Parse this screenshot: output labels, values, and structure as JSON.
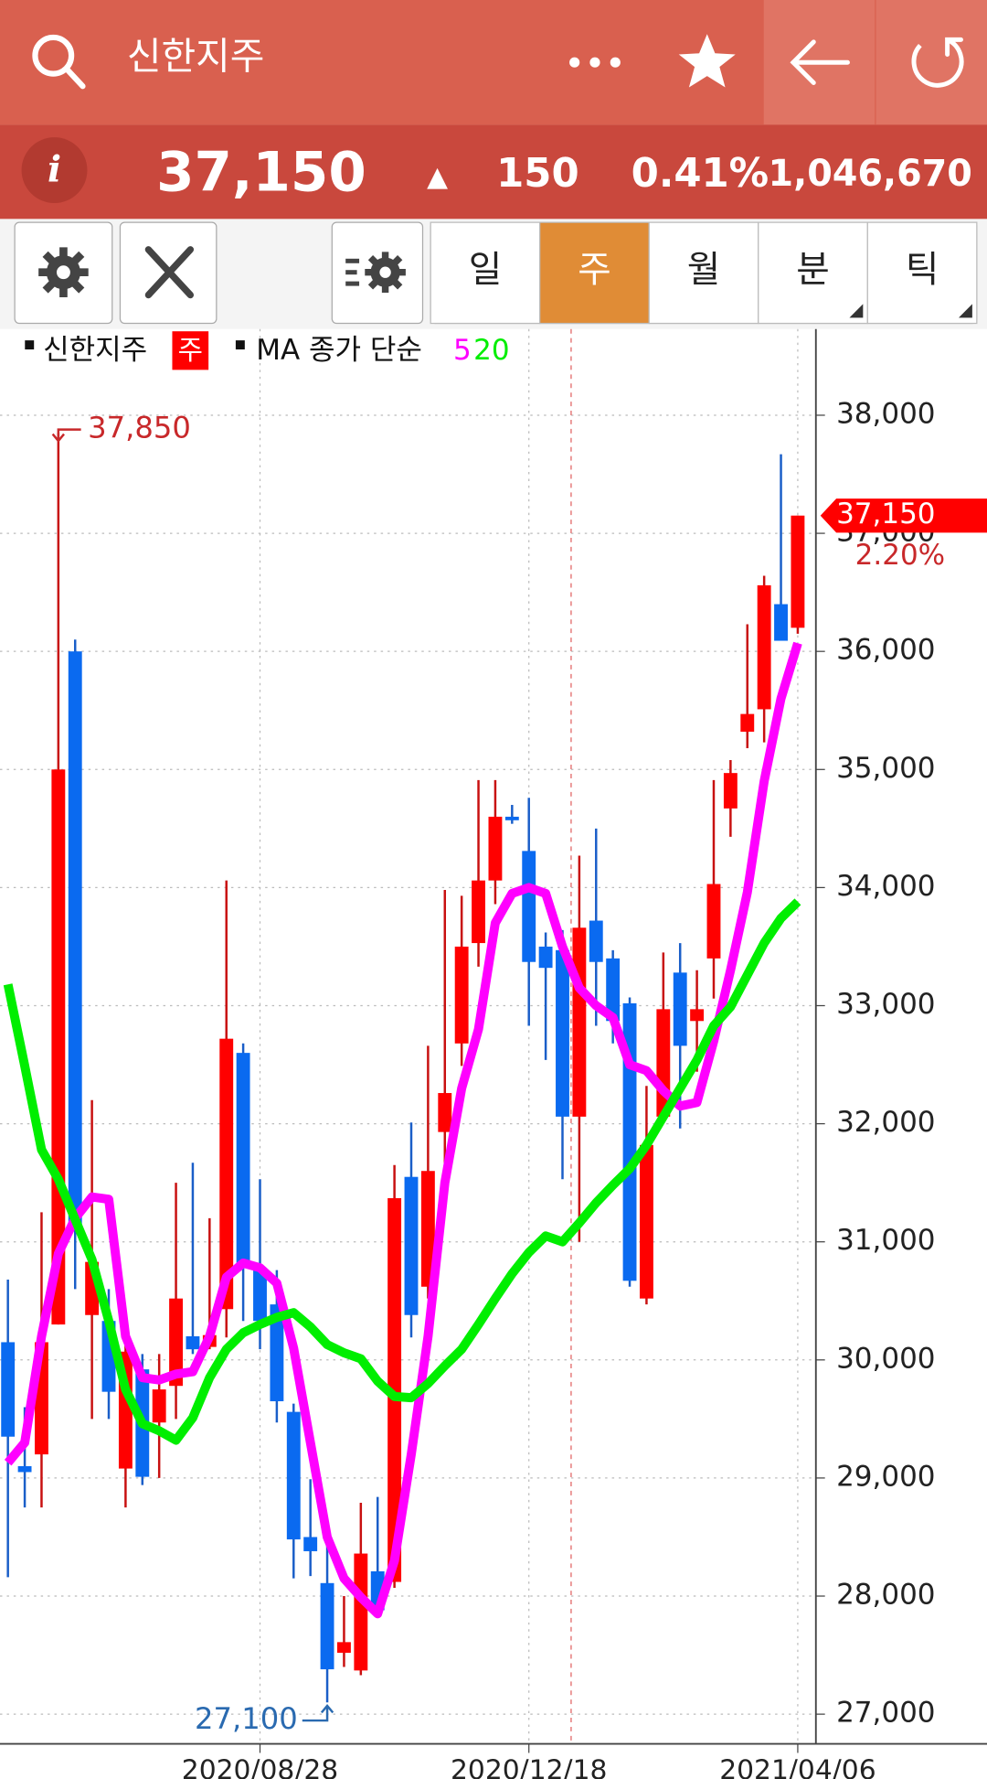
{
  "header": {
    "title": "신한지주",
    "info_icon": "i",
    "price": "37,150",
    "direction": "▲",
    "change": "150",
    "change_rate": "0.41%",
    "volume": "1,046,670"
  },
  "tabs": [
    "일",
    "주",
    "월",
    "분",
    "틱"
  ],
  "selected_tab": 1,
  "chart_data": {
    "type": "candlestick",
    "legend": {
      "name": "신한지주",
      "period": "주",
      "ma_label": "MA 종가 단순"
    },
    "categories": [
      null,
      null,
      null,
      null,
      null,
      null,
      null,
      null,
      null,
      null,
      null,
      null,
      null,
      null,
      null,
      "2020/08/28",
      null,
      null,
      null,
      null,
      null,
      null,
      null,
      null,
      null,
      null,
      null,
      null,
      null,
      null,
      null,
      "2020/12/18",
      null,
      null,
      null,
      null,
      null,
      null,
      null,
      null,
      null,
      null,
      null,
      null,
      null,
      null,
      null,
      "2021/04/06"
    ],
    "open": [
      30150,
      29100,
      29200,
      30300,
      36000,
      30380,
      30330,
      29080,
      29920,
      29470,
      29780,
      30200,
      30110,
      30430,
      32600,
      30780,
      30470,
      29560,
      28500,
      28110,
      27520,
      27370,
      28210,
      28120,
      31550,
      30620,
      31930,
      32680,
      33530,
      34060,
      34600,
      34310,
      33500,
      33470,
      32060,
      33720,
      33400,
      33020,
      30520,
      32060,
      33280,
      32870,
      33400,
      34670,
      35320,
      35510,
      36400,
      36200
    ],
    "high": [
      30680,
      29600,
      31250,
      37850,
      36100,
      32200,
      30600,
      30330,
      30050,
      30050,
      31500,
      31670,
      31200,
      34060,
      32680,
      31530,
      30760,
      29630,
      28990,
      28500,
      28000,
      28790,
      28840,
      31650,
      32010,
      32660,
      33980,
      33930,
      34910,
      34910,
      34700,
      34760,
      33620,
      33640,
      34270,
      34500,
      33470,
      33070,
      32320,
      33450,
      33530,
      33300,
      34910,
      35080,
      36230,
      36640,
      37670,
      37150
    ],
    "low": [
      28160,
      28750,
      28750,
      30300,
      30600,
      29500,
      29500,
      28750,
      28940,
      29000,
      29500,
      30050,
      30090,
      30190,
      30330,
      30090,
      29470,
      28150,
      28170,
      27100,
      27400,
      27330,
      27830,
      28070,
      30190,
      30520,
      31380,
      32490,
      33330,
      33860,
      34540,
      32830,
      32540,
      31530,
      31000,
      32830,
      32680,
      30620,
      30470,
      32010,
      31960,
      32440,
      33060,
      34430,
      35180,
      35230,
      36090,
      36150
    ],
    "close": [
      29350,
      29050,
      30150,
      35000,
      31150,
      30830,
      29730,
      30070,
      29010,
      29750,
      30520,
      30090,
      30210,
      32720,
      30780,
      30330,
      29650,
      28480,
      28380,
      27380,
      27610,
      28360,
      27880,
      31370,
      30380,
      31600,
      32260,
      33500,
      34060,
      34600,
      34570,
      33370,
      33320,
      32060,
      33660,
      33370,
      32870,
      30670,
      31820,
      32970,
      32660,
      32970,
      34030,
      34970,
      35470,
      36560,
      36090,
      37150
    ],
    "up_color": "#ff0000",
    "down_color": "#0a6af0",
    "series": [
      {
        "name": "5",
        "color": "#ff00ff",
        "values": [
          29130,
          29300,
          30200,
          30900,
          31200,
          31380,
          31360,
          30200,
          29850,
          29830,
          29880,
          29900,
          30200,
          30700,
          30820,
          30780,
          30650,
          30100,
          29300,
          28500,
          28150,
          27990,
          27850,
          28300,
          29200,
          30200,
          31500,
          32300,
          32800,
          33700,
          33950,
          34000,
          33950,
          33500,
          33150,
          33000,
          32900,
          32500,
          32450,
          32280,
          32150,
          32180,
          32700,
          33300,
          33960,
          34900,
          35600,
          36070
        ]
      },
      {
        "name": "20",
        "color": "#00ee00",
        "values": [
          33180,
          32490,
          31780,
          31530,
          31190,
          30850,
          30330,
          29750,
          29460,
          29400,
          29320,
          29510,
          29850,
          30090,
          30230,
          30300,
          30360,
          30400,
          30280,
          30130,
          30060,
          30010,
          29820,
          29690,
          29680,
          29800,
          29950,
          30090,
          30300,
          30520,
          30730,
          30910,
          31050,
          31000,
          31160,
          31330,
          31480,
          31620,
          31820,
          32060,
          32300,
          32540,
          32830,
          32990,
          33260,
          33530,
          33740,
          33880
        ]
      }
    ],
    "ylim": [
      26720,
      38730
    ],
    "yticks": [
      {
        "value": 27000,
        "label": "27,000"
      },
      {
        "value": 28000,
        "label": "28,000"
      },
      {
        "value": 29000,
        "label": "29,000"
      },
      {
        "value": 30000,
        "label": "30,000"
      },
      {
        "value": 31000,
        "label": "31,000"
      },
      {
        "value": 32000,
        "label": "32,000"
      },
      {
        "value": 33000,
        "label": "33,000"
      },
      {
        "value": 34000,
        "label": "34,000"
      },
      {
        "value": 35000,
        "label": "35,000"
      },
      {
        "value": 36000,
        "label": "36,000"
      },
      {
        "value": 37000,
        "label": "37,000"
      },
      {
        "value": 38000,
        "label": "38,000"
      }
    ],
    "grid": true,
    "annotations": [
      {
        "value": 37850,
        "label": "37,850",
        "color": "#c8282a",
        "index": 3,
        "kind": "high"
      },
      {
        "value": 27100,
        "label": "27,100",
        "color": "#2a6ab0",
        "index": 19,
        "kind": "low"
      }
    ],
    "last_price": {
      "value": 37150,
      "label": "37,150"
    },
    "last_change": {
      "value": 2.2,
      "label": "2.20%"
    }
  }
}
